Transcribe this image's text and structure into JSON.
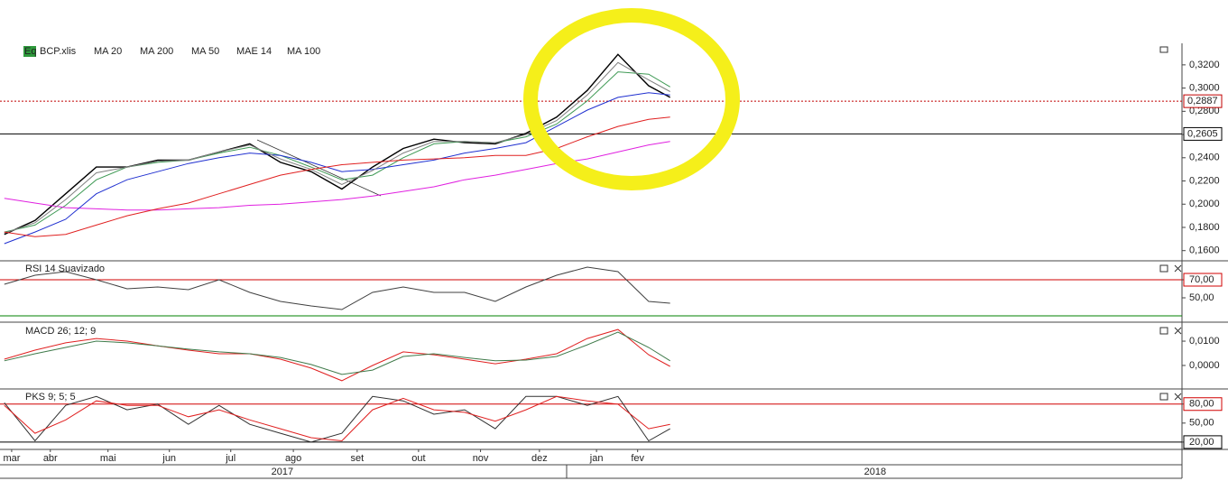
{
  "chart_data": [
    {
      "type": "line",
      "icon": "Eq",
      "x": [
        0.75,
        1.25,
        1.75,
        2.25,
        2.75,
        3.25,
        3.75,
        4.25,
        4.75,
        5.25,
        5.75,
        6.25,
        6.75,
        7.25,
        7.75,
        8.25,
        8.75,
        9.25,
        9.75,
        10.25,
        10.75,
        11.25,
        11.6
      ],
      "xlim": [
        0.68,
        19.94
      ],
      "ylim": [
        0.152,
        0.337
      ],
      "yticks": [
        {
          "value": 0.16,
          "label": "0,1600"
        },
        {
          "value": 0.18,
          "label": "0,1800"
        },
        {
          "value": 0.2,
          "label": "0,2000"
        },
        {
          "value": 0.22,
          "label": "0,2200"
        },
        {
          "value": 0.24,
          "label": "0,2400"
        },
        {
          "value": 0.26,
          "label": "0,2600"
        },
        {
          "value": 0.28,
          "label": "0,2800"
        },
        {
          "value": 0.3,
          "label": "0,3000"
        },
        {
          "value": 0.32,
          "label": "0,3200"
        }
      ],
      "price_lines": [
        {
          "value": 0.2887,
          "label": "0,2887",
          "color": "#c00000"
        },
        {
          "value": 0.2605,
          "label": "0,2605",
          "color": "#000000"
        }
      ],
      "series": [
        {
          "name": "BCP.xlis",
          "color": "#000000",
          "values": [
            0.174,
            0.186,
            0.209,
            0.232,
            0.232,
            0.238,
            0.238,
            0.245,
            0.252,
            0.236,
            0.228,
            0.213,
            0.232,
            0.248,
            0.256,
            0.253,
            0.252,
            0.261,
            0.275,
            0.298,
            0.329,
            0.302,
            0.292
          ]
        },
        {
          "name": "MA 20",
          "color": "#3f9a55",
          "values": [
            0.176,
            0.182,
            0.199,
            0.221,
            0.232,
            0.236,
            0.238,
            0.244,
            0.249,
            0.242,
            0.232,
            0.221,
            0.225,
            0.24,
            0.252,
            0.254,
            0.253,
            0.258,
            0.269,
            0.289,
            0.314,
            0.312,
            0.301
          ]
        },
        {
          "name": "MA 200",
          "color": "#e020e0",
          "values": [
            0.205,
            0.201,
            0.197,
            0.196,
            0.195,
            0.195,
            0.196,
            0.197,
            0.199,
            0.2,
            0.202,
            0.204,
            0.207,
            0.211,
            0.215,
            0.221,
            0.225,
            0.23,
            0.235,
            0.239,
            0.245,
            0.251,
            0.254
          ]
        },
        {
          "name": "MA 50",
          "color": "#2030d0",
          "values": [
            0.166,
            0.176,
            0.187,
            0.209,
            0.221,
            0.228,
            0.235,
            0.24,
            0.244,
            0.242,
            0.236,
            0.228,
            0.23,
            0.234,
            0.238,
            0.244,
            0.248,
            0.253,
            0.267,
            0.281,
            0.292,
            0.296,
            0.294
          ]
        },
        {
          "name": "MAE 14",
          "color": "#808080",
          "values": [
            0.175,
            0.184,
            0.204,
            0.227,
            0.232,
            0.237,
            0.238,
            0.245,
            0.251,
            0.239,
            0.23,
            0.217,
            0.229,
            0.244,
            0.254,
            0.254,
            0.253,
            0.26,
            0.272,
            0.294,
            0.322,
            0.307,
            0.297
          ]
        },
        {
          "name": "MA 100",
          "color": "#e02020",
          "values": [
            0.176,
            0.172,
            0.174,
            0.182,
            0.19,
            0.196,
            0.201,
            0.209,
            0.217,
            0.225,
            0.23,
            0.234,
            0.236,
            0.238,
            0.239,
            0.24,
            0.242,
            0.242,
            0.248,
            0.258,
            0.267,
            0.273,
            0.275
          ]
        }
      ]
    },
    {
      "type": "line",
      "title": "RSI 14 Suavizado",
      "x": [
        0.75,
        1.25,
        1.75,
        2.25,
        2.75,
        3.25,
        3.75,
        4.25,
        4.75,
        5.25,
        5.75,
        6.25,
        6.75,
        7.25,
        7.75,
        8.25,
        8.75,
        9.25,
        9.75,
        10.25,
        10.75,
        11.25,
        11.6
      ],
      "xlim": [
        0.68,
        19.94
      ],
      "ylim": [
        28,
        89
      ],
      "yticks": [
        {
          "value": 50,
          "label": "50,00"
        },
        {
          "value": 70,
          "label": "70,00"
        }
      ],
      "levels": [
        {
          "value": 70,
          "color": "#d00000"
        },
        {
          "value": 30,
          "color": "#008000"
        }
      ],
      "series": [
        {
          "color": "#404040",
          "values": [
            65,
            75,
            79,
            70,
            60,
            62,
            59,
            70,
            56,
            46,
            41,
            37,
            56,
            62,
            56,
            56,
            46,
            62,
            75,
            84,
            79,
            46,
            44
          ]
        }
      ]
    },
    {
      "type": "line",
      "title": "MACD 26; 12; 9",
      "x": [
        0.75,
        1.25,
        1.75,
        2.25,
        2.75,
        3.25,
        3.75,
        4.25,
        4.75,
        5.25,
        5.75,
        6.25,
        6.75,
        7.25,
        7.75,
        8.25,
        8.75,
        9.25,
        9.75,
        10.25,
        10.75,
        11.25,
        11.6
      ],
      "xlim": [
        0.68,
        19.94
      ],
      "ylim": [
        -0.0093,
        0.0167
      ],
      "yticks": [
        {
          "value": 0,
          "label": "0,0000"
        },
        {
          "value": 0.01,
          "label": "0,0100"
        }
      ],
      "series": [
        {
          "color": "#e02020",
          "values": [
            0.0026,
            0.0063,
            0.0093,
            0.0111,
            0.01,
            0.0081,
            0.0063,
            0.0048,
            0.0048,
            0.0026,
            -0.0011,
            -0.0063,
            0.0,
            0.0056,
            0.0044,
            0.0026,
            0.0007,
            0.0026,
            0.0048,
            0.0111,
            0.0148,
            0.0044,
            -0.0004
          ]
        },
        {
          "color": "#3f7a4a",
          "values": [
            0.0019,
            0.0048,
            0.0074,
            0.01,
            0.0093,
            0.0081,
            0.0067,
            0.0056,
            0.0048,
            0.0033,
            0.0004,
            -0.0037,
            -0.0019,
            0.0037,
            0.0048,
            0.0033,
            0.0019,
            0.0022,
            0.0037,
            0.0085,
            0.0137,
            0.0074,
            0.0019
          ]
        }
      ]
    },
    {
      "type": "line",
      "title": "PKS 9; 5; 5",
      "x": [
        0.75,
        1.25,
        1.75,
        2.25,
        2.75,
        3.25,
        3.75,
        4.25,
        4.75,
        5.25,
        5.75,
        6.25,
        6.75,
        7.25,
        7.75,
        8.25,
        8.75,
        9.25,
        9.75,
        10.25,
        10.75,
        11.25,
        11.6
      ],
      "xlim": [
        0.68,
        19.94
      ],
      "ylim": [
        17,
        101
      ],
      "yticks": [
        {
          "value": 20,
          "label": "20,00"
        },
        {
          "value": 50,
          "label": "50,00"
        },
        {
          "value": 80,
          "label": "80,00"
        }
      ],
      "levels": [
        {
          "value": 80,
          "color": "#d00000"
        },
        {
          "value": 20,
          "color": "#000000"
        }
      ],
      "series": [
        {
          "color": "#303030",
          "values": [
            82,
            22,
            78,
            92,
            71,
            80,
            48,
            78,
            48,
            34,
            20,
            34,
            92,
            85,
            64,
            71,
            41,
            92,
            92,
            78,
            92,
            22,
            41
          ]
        },
        {
          "color": "#e02020",
          "values": [
            78,
            34,
            55,
            85,
            78,
            78,
            60,
            71,
            55,
            41,
            27,
            22,
            71,
            89,
            71,
            67,
            53,
            71,
            92,
            85,
            80,
            41,
            48
          ]
        }
      ],
      "xticks": [
        {
          "value": 0.87,
          "label": "mar"
        },
        {
          "value": 1.5,
          "label": "abr"
        },
        {
          "value": 2.44,
          "label": "mai"
        },
        {
          "value": 3.44,
          "label": "jun"
        },
        {
          "value": 4.44,
          "label": "jul"
        },
        {
          "value": 5.46,
          "label": "ago"
        },
        {
          "value": 6.5,
          "label": "set"
        },
        {
          "value": 7.5,
          "label": "out"
        },
        {
          "value": 8.51,
          "label": "nov"
        },
        {
          "value": 9.47,
          "label": "dez"
        },
        {
          "value": 10.4,
          "label": "jan"
        },
        {
          "value": 11.07,
          "label": "fev"
        }
      ],
      "year_labels": [
        {
          "value": 5.28,
          "label": "2017"
        },
        {
          "value": 14.94,
          "label": "2018"
        }
      ]
    }
  ]
}
